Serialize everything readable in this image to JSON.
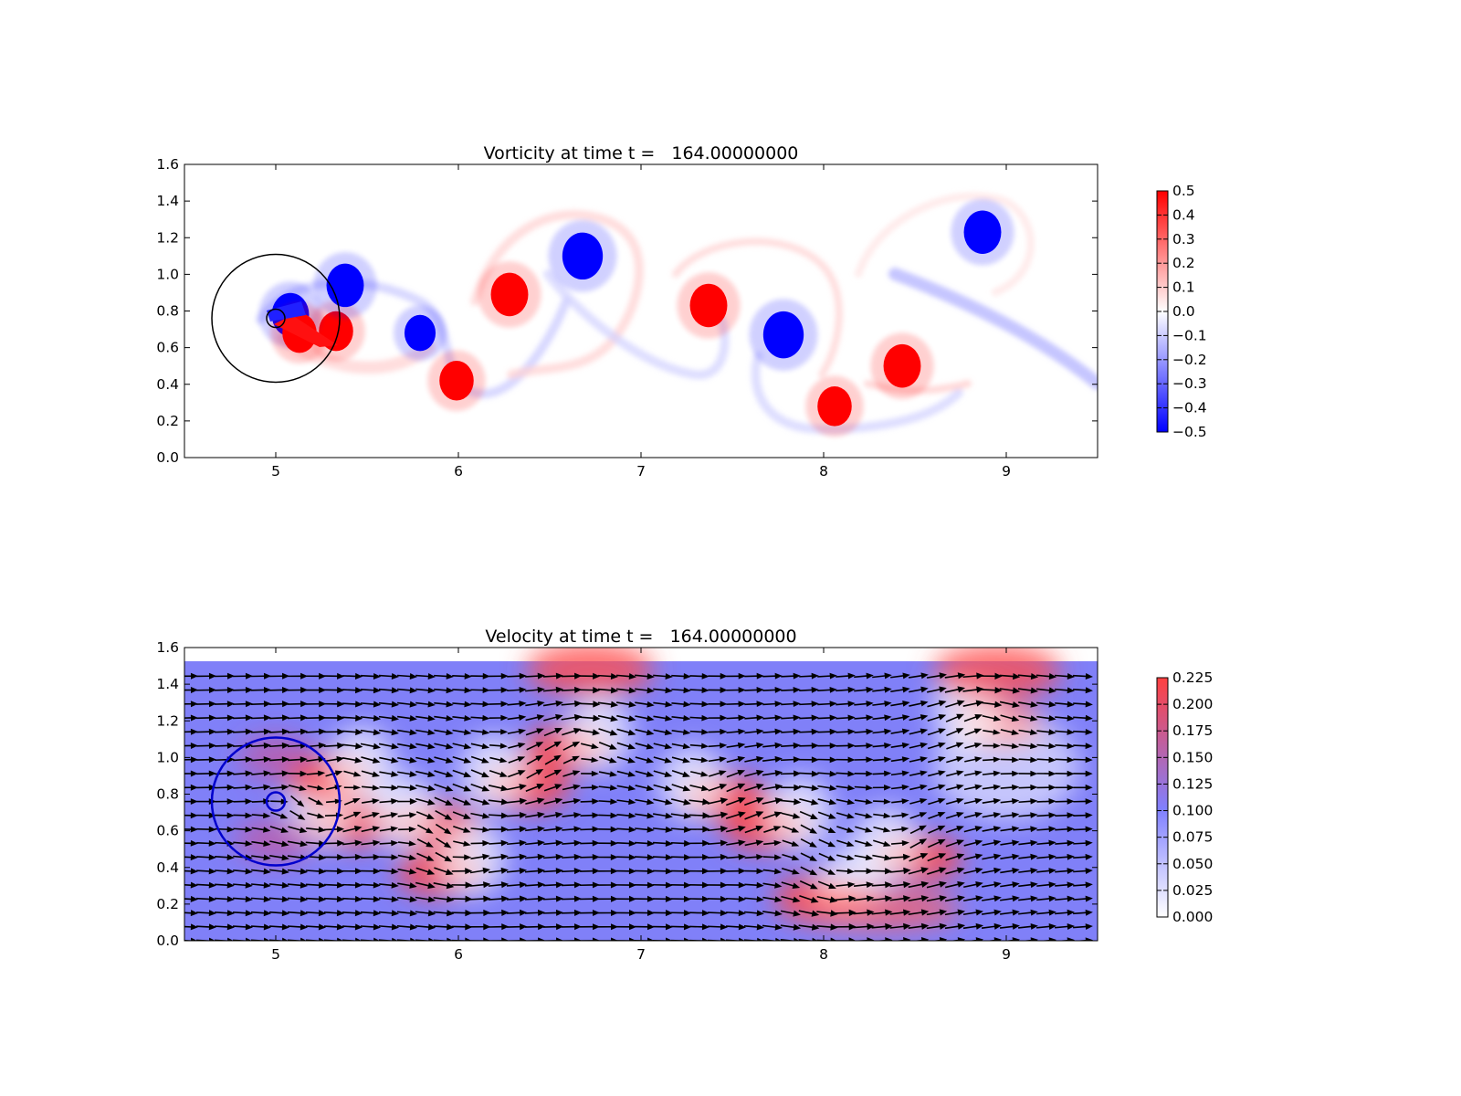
{
  "chart_data": [
    {
      "type": "heatmap",
      "title": "Vorticity at time t =   164.00000000",
      "xlabel": "",
      "ylabel": "",
      "xlim": [
        4.5,
        9.5
      ],
      "ylim": [
        0.0,
        1.6
      ],
      "xticks": [
        "5",
        "6",
        "7",
        "8",
        "9"
      ],
      "yticks": [
        "0.0",
        "0.2",
        "0.4",
        "0.6",
        "0.8",
        "1.0",
        "1.2",
        "1.4",
        "1.6"
      ],
      "colorbar": {
        "range": [
          -0.5,
          0.5
        ],
        "ticks": [
          "0.5",
          "0.4",
          "0.3",
          "0.2",
          "0.1",
          "0.0",
          "−0.1",
          "−0.2",
          "−0.3",
          "−0.4",
          "−0.5"
        ],
        "colors": [
          "#0000ff",
          "#ffffff",
          "#ff0000"
        ]
      },
      "overlays": [
        {
          "shape": "circle",
          "center": [
            5.0,
            0.76
          ],
          "radius": 0.35,
          "color": "#000000"
        },
        {
          "shape": "circle",
          "center": [
            5.0,
            0.76
          ],
          "radius": 0.05,
          "color": "#000000"
        }
      ],
      "vortices": [
        {
          "x": 5.33,
          "y": 0.69,
          "strength": 0.55
        },
        {
          "x": 5.38,
          "y": 0.94,
          "strength": -0.6
        },
        {
          "x": 5.08,
          "y": 0.78,
          "strength": -0.6
        },
        {
          "x": 5.13,
          "y": 0.68,
          "strength": 0.55
        },
        {
          "x": 5.79,
          "y": 0.68,
          "strength": -0.5
        },
        {
          "x": 5.99,
          "y": 0.42,
          "strength": 0.55
        },
        {
          "x": 6.28,
          "y": 0.89,
          "strength": 0.6
        },
        {
          "x": 6.68,
          "y": 1.1,
          "strength": -0.65
        },
        {
          "x": 7.37,
          "y": 0.83,
          "strength": 0.6
        },
        {
          "x": 7.78,
          "y": 0.67,
          "strength": -0.65
        },
        {
          "x": 8.43,
          "y": 0.5,
          "strength": 0.6
        },
        {
          "x": 8.06,
          "y": 0.28,
          "strength": 0.55
        },
        {
          "x": 8.87,
          "y": 1.23,
          "strength": -0.6
        }
      ]
    },
    {
      "type": "heatmap",
      "title": "Velocity at time t =   164.00000000",
      "xlabel": "",
      "ylabel": "",
      "xlim": [
        4.5,
        9.5
      ],
      "ylim": [
        0.0,
        1.6
      ],
      "xticks": [
        "5",
        "6",
        "7",
        "8",
        "9"
      ],
      "yticks": [
        "0.0",
        "0.2",
        "0.4",
        "0.6",
        "0.8",
        "1.0",
        "1.2",
        "1.4",
        "1.6"
      ],
      "data_ymax": 1.52,
      "background_speed": 0.1,
      "colorbar": {
        "range": [
          0.0,
          0.225
        ],
        "ticks": [
          "0.225",
          "0.200",
          "0.175",
          "0.150",
          "0.125",
          "0.100",
          "0.075",
          "0.050",
          "0.025",
          "0.000"
        ],
        "colors": [
          "#ffffff",
          "#8080ff",
          "#ff4040"
        ]
      },
      "overlays": [
        {
          "shape": "circle",
          "center": [
            5.0,
            0.76
          ],
          "radius": 0.35,
          "color": "#0000cc"
        },
        {
          "shape": "circle",
          "center": [
            5.0,
            0.76
          ],
          "radius": 0.05,
          "color": "#0000cc"
        }
      ],
      "quiver": {
        "color": "#000000",
        "x_step": 0.1,
        "y_step": 0.076
      }
    }
  ]
}
